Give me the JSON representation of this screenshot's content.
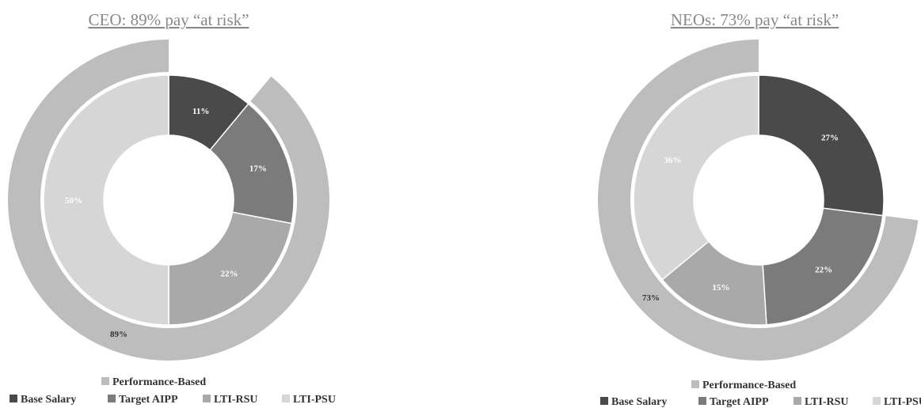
{
  "colors": {
    "base_salary": "#4a4a4a",
    "target_aipp": "#7b7b7b",
    "lti_rsu": "#a9a9a9",
    "lti_psu": "#d6d6d6",
    "performance_based": "#bdbdbd",
    "ring_gap": "#ffffff"
  },
  "chart_data": [
    {
      "type": "pie",
      "title": "CEO: 89% pay “at risk”",
      "categories": [
        "Base Salary",
        "Target AIPP",
        "LTI-RSU",
        "LTI-PSU"
      ],
      "values": [
        11,
        17,
        22,
        50
      ],
      "labels": [
        "11%",
        "17%",
        "22%",
        "50%"
      ],
      "outer_ring": {
        "name": "Performance-Based",
        "value": 89,
        "label": "89%"
      },
      "legend": {
        "top": "Performance-Based",
        "items": [
          "Base Salary",
          "Target AIPP",
          "LTI-RSU",
          "LTI-PSU"
        ]
      }
    },
    {
      "type": "pie",
      "title": "NEOs: 73% pay “at risk”",
      "categories": [
        "Base Salary",
        "Target AIPP",
        "LTI-RSU",
        "LTI-PSU"
      ],
      "values": [
        27,
        22,
        15,
        36
      ],
      "labels": [
        "27%",
        "22%",
        "15%",
        "36%"
      ],
      "outer_ring": {
        "name": "Performance-Based",
        "value": 73,
        "label": "73%"
      },
      "legend": {
        "top": "Performance-Based",
        "items": [
          "Base Salary",
          "Target AIPP",
          "LTI-RSU",
          "LTI-PSU"
        ]
      }
    }
  ]
}
